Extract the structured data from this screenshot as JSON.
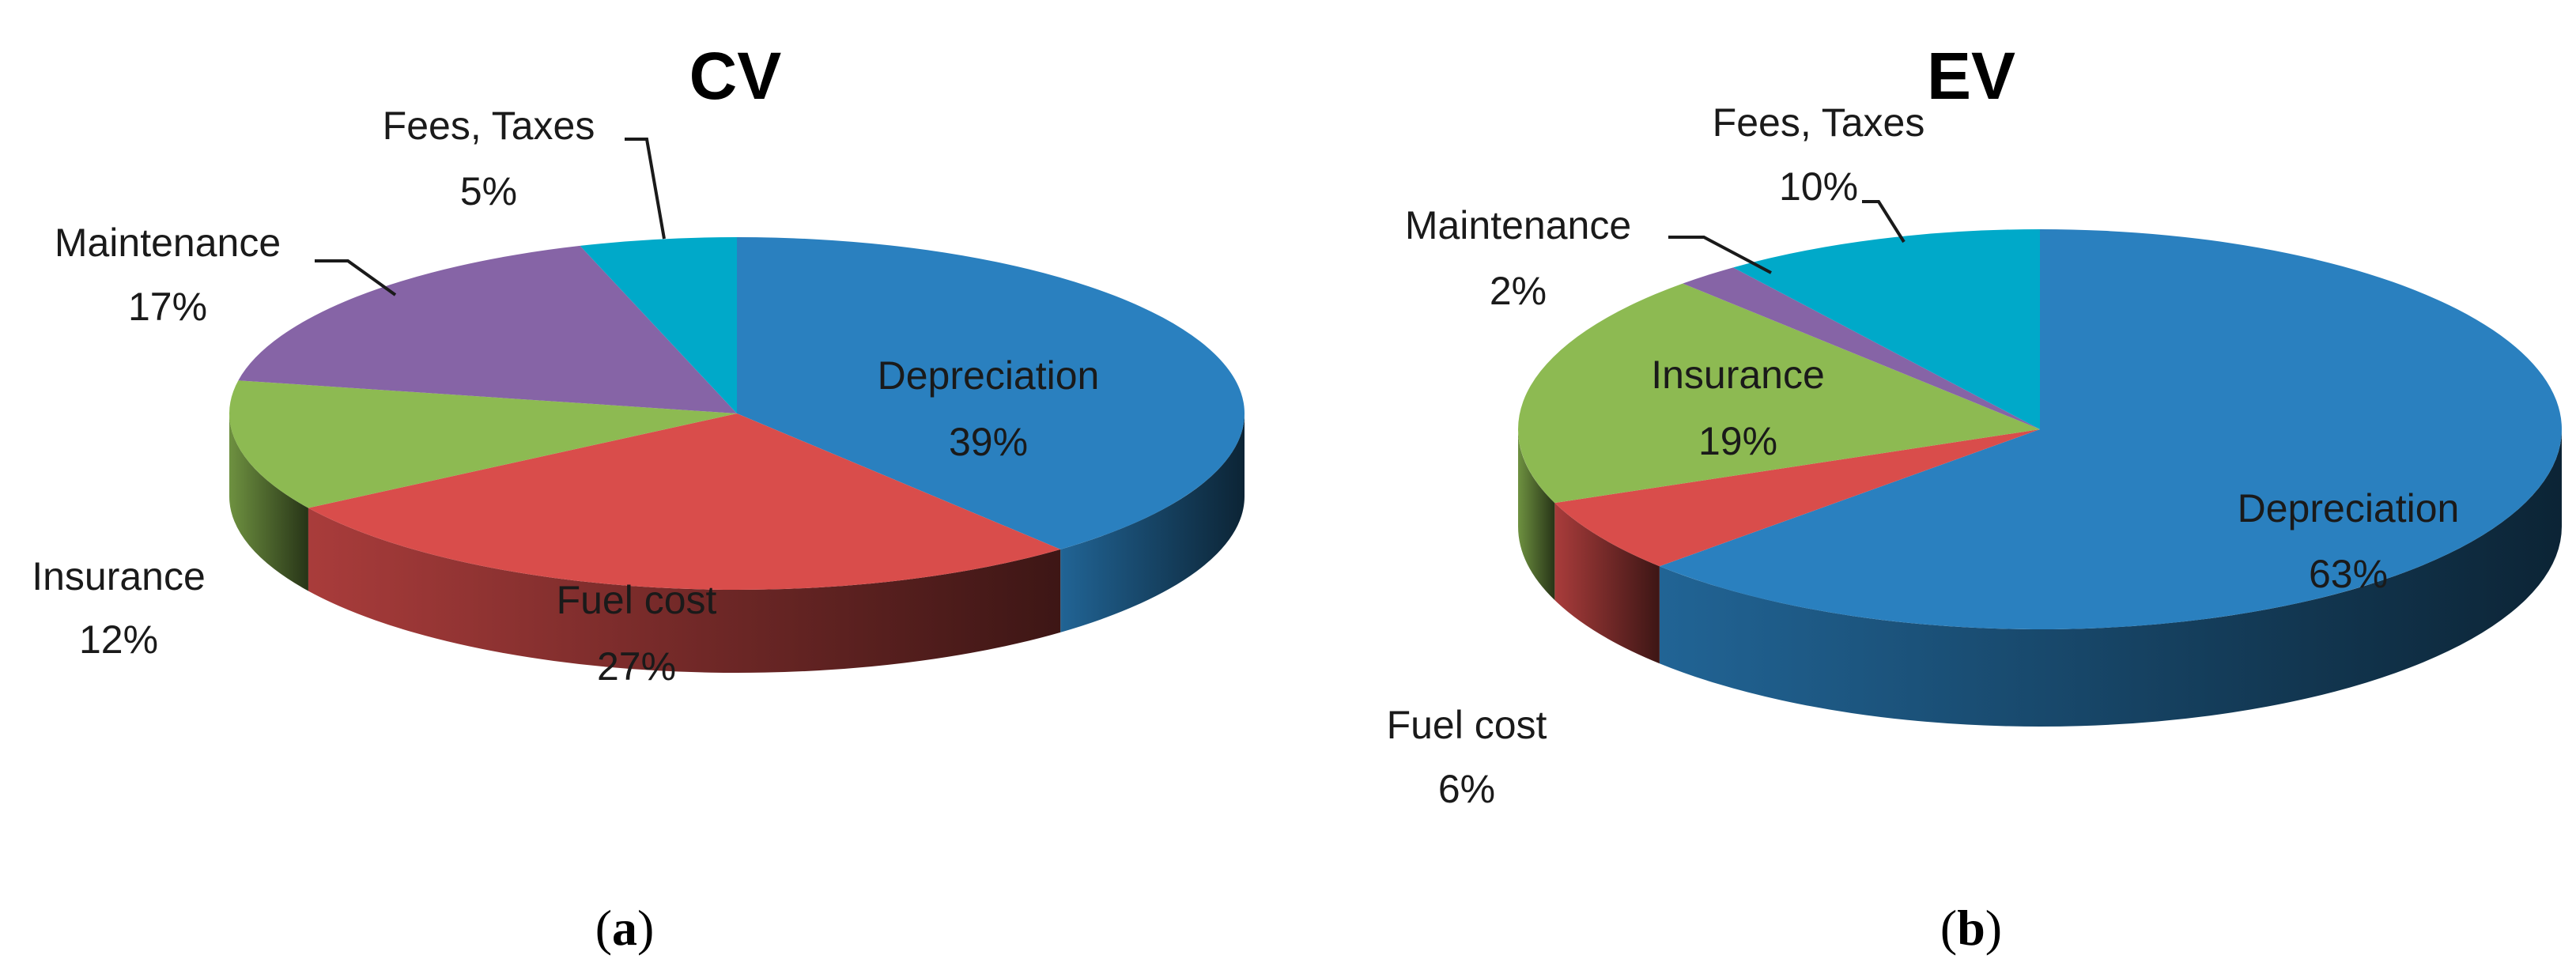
{
  "chart_data": [
    {
      "type": "pie",
      "title": "CV",
      "panel_label": "a",
      "start_angle_deg": -90,
      "direction": "clockwise",
      "slices": [
        {
          "label": "Depreciation",
          "value": 39,
          "value_text": "39%",
          "color": "#2A80BF"
        },
        {
          "label": "Fuel cost",
          "value": 27,
          "value_text": "27%",
          "color": "#D94D4B"
        },
        {
          "label": "Insurance",
          "value": 12,
          "value_text": "12%",
          "color": "#8DBA52"
        },
        {
          "label": "Maintenance",
          "value": 17,
          "value_text": "17%",
          "color": "#8664A6"
        },
        {
          "label": "Fees, Taxes",
          "value": 5,
          "value_text": "5%",
          "color": "#00A9C9"
        }
      ]
    },
    {
      "type": "pie",
      "title": "EV",
      "panel_label": "b",
      "start_angle_deg": -90,
      "direction": "clockwise",
      "slices": [
        {
          "label": "Depreciation",
          "value": 63,
          "value_text": "63%",
          "color": "#2A80BF"
        },
        {
          "label": "Fuel cost",
          "value": 6,
          "value_text": "6%",
          "color": "#D94D4B"
        },
        {
          "label": "Insurance",
          "value": 19,
          "value_text": "19%",
          "color": "#8DBA52"
        },
        {
          "label": "Maintenance",
          "value": 2,
          "value_text": "2%",
          "color": "#8664A6"
        },
        {
          "label": "Fees, Taxes",
          "value": 10,
          "value_text": "10%",
          "color": "#00A9C9"
        }
      ]
    }
  ]
}
